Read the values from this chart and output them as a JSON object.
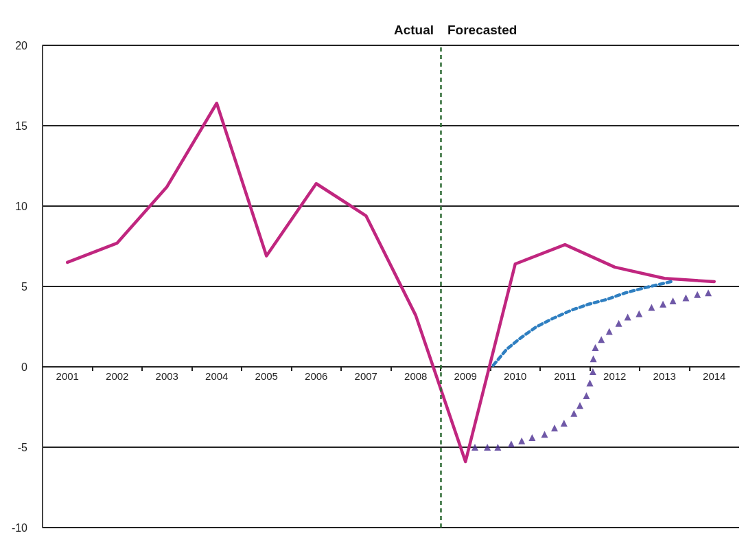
{
  "chart_data": {
    "type": "line",
    "annotations": [
      "Actual",
      "Forecasted"
    ],
    "xlim": [
      2000.5,
      2014.5
    ],
    "xticks": [
      {
        "value": 2001,
        "label": "2001"
      },
      {
        "value": 2002,
        "label": "2002"
      },
      {
        "value": 2003,
        "label": "2003"
      },
      {
        "value": 2004,
        "label": "2004"
      },
      {
        "value": 2005,
        "label": "2005"
      },
      {
        "value": 2006,
        "label": "2006"
      },
      {
        "value": 2007,
        "label": "2007"
      },
      {
        "value": 2008,
        "label": "2008"
      },
      {
        "value": 2009,
        "label": "2009"
      },
      {
        "value": 2010,
        "label": "2010"
      },
      {
        "value": 2011,
        "label": "2011"
      },
      {
        "value": 2012,
        "label": "2012"
      },
      {
        "value": 2013,
        "label": "2013"
      },
      {
        "value": 2014,
        "label": "2014"
      }
    ],
    "ylim": [
      -10,
      20
    ],
    "yticks": [
      -10,
      -5,
      0,
      5,
      10,
      15,
      20
    ],
    "grid": "y",
    "ref_lines": [
      {
        "axis": "x",
        "value": 2008.5,
        "color": "#2e6b34",
        "line_style": "dashed"
      }
    ],
    "series": [
      {
        "color": "#c0267f",
        "marker": "none",
        "line_style": "solid",
        "x": [
          2001,
          2002,
          2003,
          2004,
          2005,
          2006,
          2007,
          2008,
          2009,
          2010,
          2011,
          2012,
          2013,
          2014
        ],
        "values": [
          6.5,
          7.7,
          11.2,
          16.4,
          6.9,
          11.4,
          9.4,
          3.2,
          -5.9,
          6.4,
          7.6,
          6.2,
          5.5,
          5.3
        ]
      },
      {
        "type": "line",
        "color": "#2f7fc1",
        "marker": "none",
        "line_style": "dashed",
        "x": [
          2009.56,
          2009.83,
          2010.11,
          2010.43,
          2010.75,
          2011.11,
          2011.48,
          2011.85,
          2012.21,
          2012.58,
          2012.85,
          2013.13
        ],
        "values": [
          0.1,
          1.1,
          1.8,
          2.5,
          3.0,
          3.5,
          3.9,
          4.2,
          4.6,
          4.9,
          5.1,
          5.3
        ]
      },
      {
        "type": "scatter",
        "color": "#4b2e91",
        "marker": "triangle",
        "x": [
          2009.19,
          2009.44,
          2009.65,
          2009.92,
          2010.13,
          2010.34,
          2010.59,
          2010.79,
          2010.98,
          2011.18,
          2011.3,
          2011.43,
          2011.5,
          2011.56,
          2011.57,
          2011.61,
          2011.73,
          2011.89,
          2012.08,
          2012.26,
          2012.49,
          2012.74,
          2012.97,
          2013.17,
          2013.43,
          2013.66,
          2013.88
        ],
        "values": [
          -5.0,
          -5.0,
          -5.0,
          -4.8,
          -4.6,
          -4.4,
          -4.2,
          -3.8,
          -3.5,
          -2.9,
          -2.4,
          -1.8,
          -1.0,
          -0.3,
          0.5,
          1.2,
          1.7,
          2.2,
          2.7,
          3.1,
          3.3,
          3.7,
          3.9,
          4.1,
          4.3,
          4.5,
          4.6
        ]
      }
    ]
  }
}
